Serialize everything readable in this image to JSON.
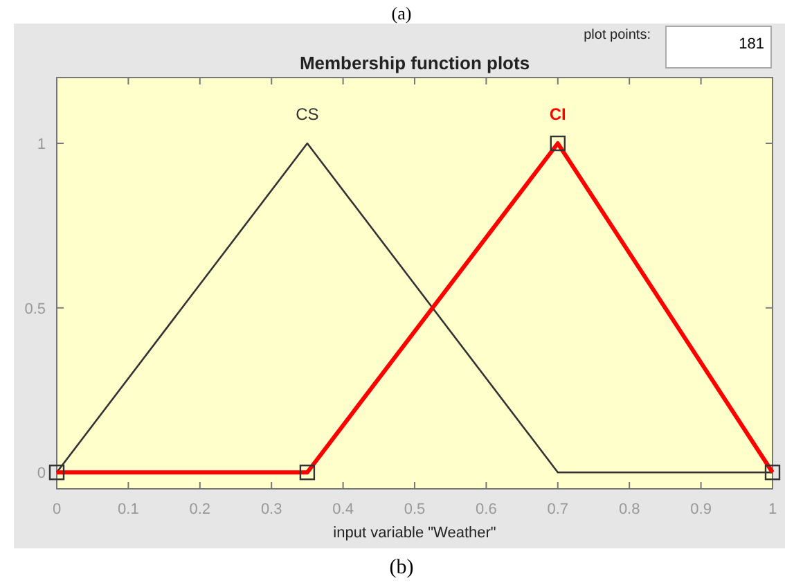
{
  "chart_data": {
    "type": "line",
    "title": "Membership function plots",
    "xlabel": "input variable \"Weather\"",
    "xlim": [
      0,
      1
    ],
    "xticks": [
      0,
      0.1,
      0.2,
      0.3,
      0.4,
      0.5,
      0.6,
      0.7,
      0.8,
      0.9,
      1
    ],
    "ylim": [
      -0.05,
      1.2
    ],
    "yticks": [
      0,
      0.5,
      1
    ],
    "grid": false,
    "series": [
      {
        "name": "CS",
        "color": "#333333",
        "x": [
          0,
          0.35,
          0.7,
          1
        ],
        "values": [
          0,
          1,
          0,
          0
        ]
      },
      {
        "name": "CI",
        "color": "#ff0000",
        "x": [
          0,
          0.35,
          0.7,
          1
        ],
        "values": [
          0,
          0,
          1,
          0
        ],
        "marker": "square"
      }
    ],
    "annotations": [
      "(a)",
      "plot points:",
      "181",
      "(b)"
    ]
  }
}
